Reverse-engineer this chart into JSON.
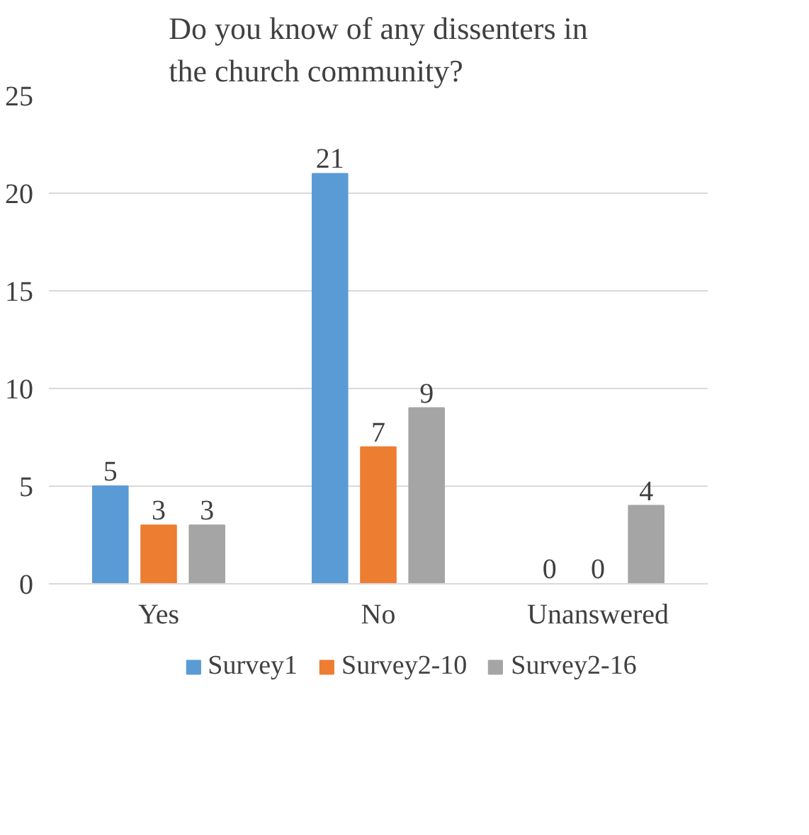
{
  "chart_data": {
    "type": "bar",
    "title": "Do you know of any dissenters in\nthe church community?",
    "categories": [
      "Yes",
      "No",
      "Unanswered"
    ],
    "series": [
      {
        "name": "Survey1",
        "color": "#5b9bd5",
        "values": [
          5,
          21,
          0
        ]
      },
      {
        "name": "Survey2-10",
        "color": "#ed7d31",
        "values": [
          3,
          7,
          0
        ]
      },
      {
        "name": "Survey2-16",
        "color": "#a5a5a5",
        "values": [
          3,
          9,
          4
        ]
      }
    ],
    "ylim": [
      0,
      25
    ],
    "yticks": [
      0,
      5,
      10,
      15,
      20,
      25
    ],
    "grid": "y",
    "data_labels": true,
    "legend": "bottom"
  }
}
